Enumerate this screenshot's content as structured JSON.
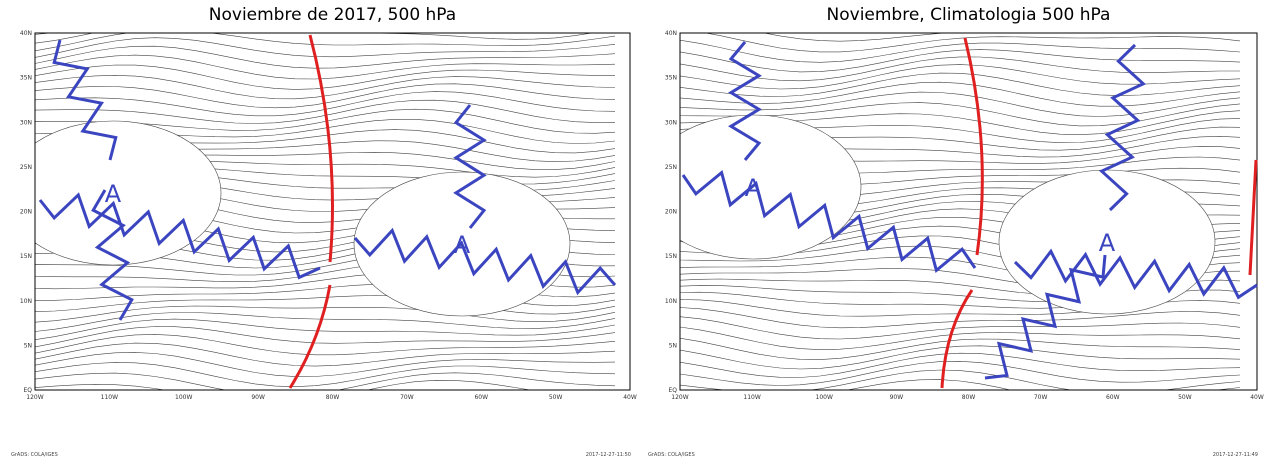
{
  "panels": [
    {
      "title": "Noviembre de 2017, 500 hPa",
      "lat_labels": [
        "40N",
        "35N",
        "30N",
        "25N",
        "20N",
        "15N",
        "10N",
        "5N",
        "EQ"
      ],
      "lon_labels": [
        "120W",
        "110W",
        "100W",
        "90W",
        "80W",
        "70W",
        "60W",
        "50W",
        "40W"
      ],
      "highs": [
        "A",
        "A"
      ],
      "footer_left": "GrADS: COLA/IGES",
      "footer_right": "2017-12-27-11:50"
    },
    {
      "title": "Noviembre, Climatologia 500 hPa",
      "lat_labels": [
        "40N",
        "35N",
        "30N",
        "25N",
        "20N",
        "15N",
        "10N",
        "5N",
        "EQ"
      ],
      "lon_labels": [
        "120W",
        "110W",
        "100W",
        "90W",
        "80W",
        "70W",
        "60W",
        "50W",
        "40W"
      ],
      "highs": [
        "A",
        "A"
      ],
      "footer_left": "GrADS: COLA/IGES",
      "footer_right": "2017-12-27-11:49"
    }
  ]
}
